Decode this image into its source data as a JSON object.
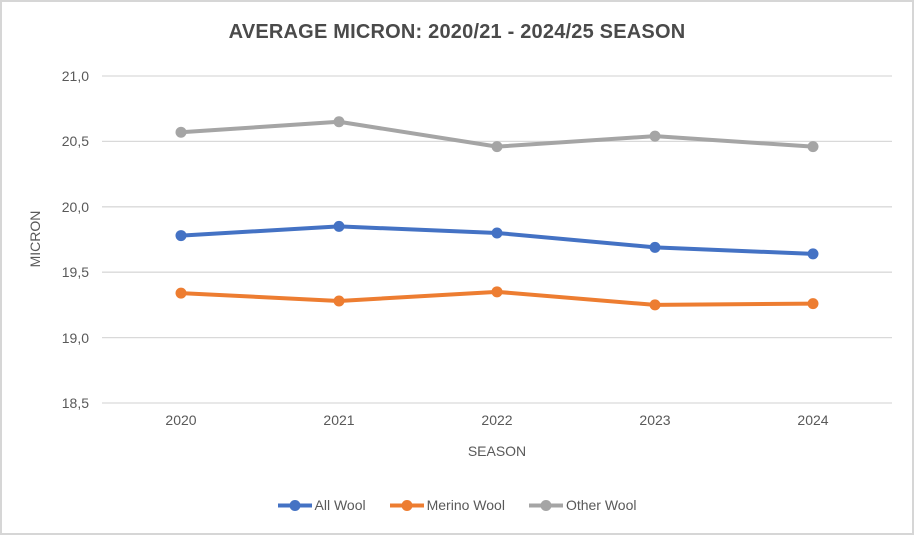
{
  "chart_data": {
    "type": "line",
    "title": "AVERAGE MICRON: 2020/21 - 2024/25 SEASON",
    "xlabel": "SEASON",
    "ylabel": "MICRON",
    "categories": [
      "2020",
      "2021",
      "2022",
      "2023",
      "2024"
    ],
    "series": [
      {
        "name": "All Wool",
        "color": "#4472C4",
        "values": [
          19.78,
          19.85,
          19.8,
          19.69,
          19.64
        ]
      },
      {
        "name": "Merino Wool",
        "color": "#ED7D31",
        "values": [
          19.34,
          19.28,
          19.35,
          19.25,
          19.26
        ]
      },
      {
        "name": "Other Wool",
        "color": "#A5A5A5",
        "values": [
          20.57,
          20.65,
          20.46,
          20.54,
          20.46
        ]
      }
    ],
    "ylim": [
      18.5,
      21.0
    ],
    "yticks": [
      {
        "value": 21.0,
        "label": "21,0"
      },
      {
        "value": 20.5,
        "label": "20,5"
      },
      {
        "value": 20.0,
        "label": "20,0"
      },
      {
        "value": 19.5,
        "label": "19,5"
      },
      {
        "value": 19.0,
        "label": "19,0"
      },
      {
        "value": 18.5,
        "label": "18,5"
      }
    ],
    "grid": "horizontal",
    "legend_position": "bottom",
    "colors": {
      "grid": "#D9D9D9",
      "axis_text": "#595959",
      "title_text": "#4a4a4a",
      "frame_border": "#D6D6D6",
      "background": "#FFFFFF"
    }
  }
}
